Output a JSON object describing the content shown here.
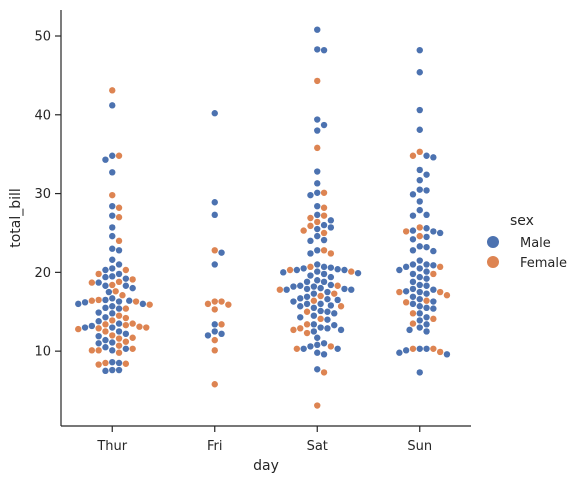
{
  "chart_data": {
    "type": "scatter",
    "subtype": "swarm",
    "title": "",
    "xlabel": "day",
    "ylabel": "total_bill",
    "categories": [
      "Thur",
      "Fri",
      "Sat",
      "Sun"
    ],
    "ylim": [
      0.5,
      53.3
    ],
    "yticks": [
      10,
      20,
      30,
      40,
      50
    ],
    "grid": false,
    "legend": {
      "title": "sex",
      "placement": "right",
      "entries": [
        "Male",
        "Female"
      ]
    },
    "series": [
      {
        "name": "Male",
        "color": "#4c72b0",
        "values_by_category": {
          "Thur": [
            41.2,
            34.8,
            34.3,
            32.7,
            28.4,
            27.2,
            25.7,
            24.6,
            23.0,
            22.8,
            21.6,
            21.0,
            20.5,
            20.3,
            19.8,
            19.5,
            19.4,
            19.2,
            18.7,
            18.3,
            18.3,
            18.0,
            17.5,
            16.7,
            16.5,
            16.4,
            16.3,
            16.2,
            16.0,
            16.0,
            15.7,
            15.5,
            15.4,
            14.9,
            14.8,
            14.3,
            13.8,
            13.5,
            13.2,
            13.0,
            13.0,
            12.5,
            12.2,
            11.9,
            11.4,
            11.1,
            11.0,
            10.5,
            10.3,
            10.1,
            8.6,
            8.5,
            7.6,
            7.6,
            7.5
          ],
          "Fri": [
            40.2,
            28.9,
            27.3,
            22.5,
            21.0,
            13.4,
            12.5,
            12.2,
            12.0
          ],
          "Sat": [
            50.8,
            48.3,
            48.2,
            39.4,
            38.7,
            38.0,
            32.8,
            31.3,
            30.1,
            29.8,
            28.4,
            27.3,
            26.6,
            26.0,
            25.7,
            25.5,
            24.6,
            24.1,
            24.0,
            22.8,
            22.4,
            21.0,
            20.7,
            20.6,
            20.5,
            20.4,
            20.3,
            20.3,
            20.1,
            20.0,
            19.9,
            19.8,
            19.6,
            19.4,
            19.0,
            18.8,
            18.8,
            18.4,
            18.3,
            18.2,
            18.2,
            18.0,
            17.9,
            17.9,
            17.8,
            17.8,
            17.5,
            17.3,
            16.9,
            16.7,
            16.6,
            16.5,
            16.3,
            16.0,
            16.0,
            15.8,
            15.7,
            15.5,
            15.1,
            15.0,
            14.8,
            14.5,
            14.3,
            14.0,
            13.4,
            13.3,
            13.0,
            12.9,
            12.7,
            12.5,
            11.7,
            11.0,
            10.8,
            10.6,
            10.3,
            10.3,
            9.8,
            9.6,
            7.7
          ],
          "Sun": [
            48.2,
            45.4,
            40.6,
            38.1,
            34.8,
            34.6,
            33.0,
            32.4,
            31.7,
            30.5,
            30.4,
            29.9,
            29.0,
            27.9,
            27.3,
            27.2,
            25.6,
            25.3,
            25.2,
            25.0,
            24.5,
            24.2,
            23.3,
            23.2,
            22.8,
            22.7,
            21.5,
            21.0,
            21.0,
            20.9,
            20.7,
            20.5,
            20.3,
            20.1,
            19.8,
            19.4,
            19.2,
            18.8,
            18.4,
            18.3,
            17.9,
            17.8,
            17.6,
            17.5,
            17.3,
            16.9,
            16.6,
            16.3,
            16.0,
            15.7,
            15.5,
            15.4,
            14.8,
            14.3,
            13.9,
            13.4,
            13.0,
            12.7,
            12.5,
            10.3,
            10.3,
            10.1,
            9.8,
            9.6,
            7.3
          ]
        }
      },
      {
        "name": "Female",
        "color": "#dd8452",
        "values_by_category": {
          "Thur": [
            43.1,
            34.8,
            29.8,
            28.2,
            27.0,
            24.0,
            20.3,
            19.8,
            19.1,
            18.8,
            18.7,
            18.4,
            17.6,
            17.1,
            16.5,
            16.4,
            16.3,
            15.9,
            15.4,
            14.5,
            14.2,
            13.9,
            13.5,
            13.4,
            13.3,
            13.1,
            13.0,
            12.9,
            12.8,
            12.5,
            12.0,
            11.7,
            11.6,
            11.2,
            10.7,
            10.3,
            10.1,
            10.1,
            9.8,
            8.5,
            8.4,
            8.3
          ],
          "Fri": [
            22.8,
            16.3,
            16.3,
            16.0,
            15.9,
            15.3,
            13.4,
            11.4,
            10.1,
            5.8
          ],
          "Sat": [
            44.3,
            35.8,
            30.1,
            28.2,
            27.2,
            26.9,
            26.4,
            25.9,
            25.3,
            25.0,
            22.8,
            22.4,
            20.7,
            20.3,
            20.1,
            18.3,
            17.8,
            17.3,
            17.0,
            16.4,
            15.7,
            15.0,
            14.1,
            13.4,
            12.9,
            12.7,
            12.3,
            10.6,
            10.3,
            7.3,
            3.1
          ],
          "Sun": [
            35.3,
            34.8,
            25.7,
            25.2,
            24.6,
            20.7,
            19.8,
            17.5,
            17.5,
            17.1,
            16.2,
            16.4,
            14.8,
            14.1,
            13.5,
            10.3,
            10.3,
            9.9
          ]
        }
      }
    ]
  }
}
